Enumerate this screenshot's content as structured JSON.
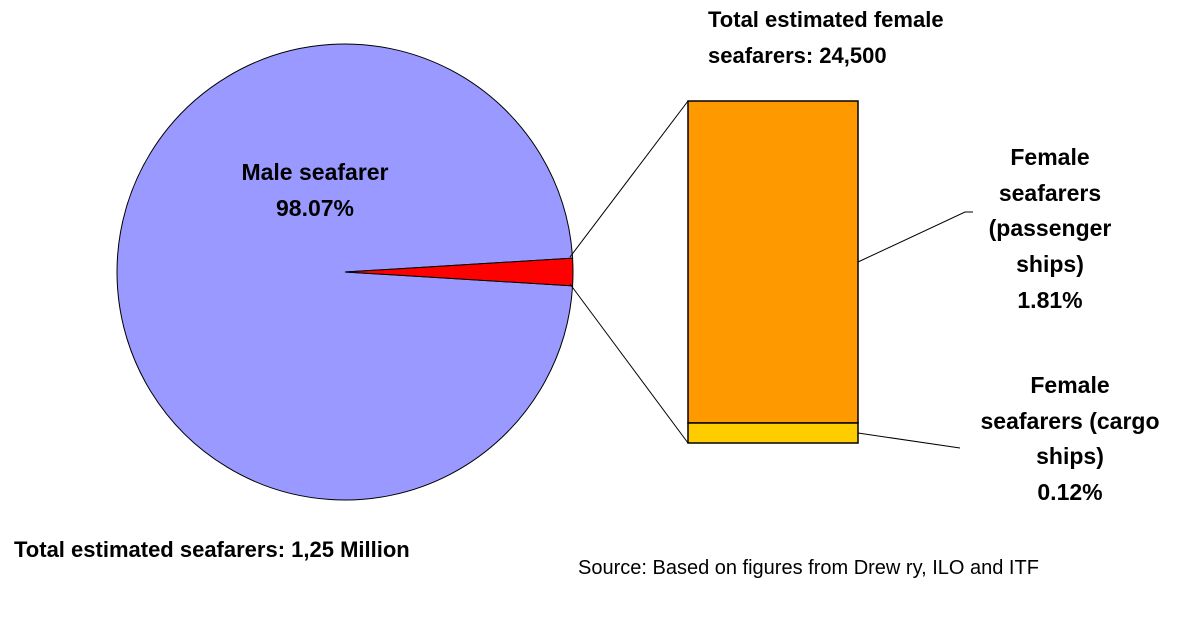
{
  "chart_data": {
    "type": "pie",
    "pie": {
      "slices": [
        {
          "label": "Male seafarer",
          "value_label": "98.07%",
          "value": 98.07,
          "color": "#9999ff"
        },
        {
          "label": "Female seafarers",
          "value": 1.93,
          "color": "#ff0000"
        }
      ]
    },
    "breakdown": {
      "type": "stacked-bar",
      "segments": [
        {
          "label": "Female seafarers (passenger ships)",
          "value_label": "1.81%",
          "value": 1.81,
          "color": "#ff9900"
        },
        {
          "label": "Female seafarers (cargo ships)",
          "value_label": "0.12%",
          "value": 0.12,
          "color": "#ffcc00"
        }
      ]
    },
    "annotations": {
      "female_total": "Total estimated  female seafarers: 24,500",
      "total": "Total estimated seafarers: 1,25 Million",
      "source": "Source: Based on figures from Drew ry, ILO and ITF"
    }
  },
  "labels": {
    "male_name": "Male seafarer",
    "male_pct": "98.07%",
    "female_total_line1": "Total estimated  female",
    "female_total_line2": "seafarers: 24,500",
    "passenger_line1": "Female",
    "passenger_line2": "seafarers",
    "passenger_line3": "(passenger",
    "passenger_line4": "ships)",
    "passenger_pct": "1.81%",
    "cargo_line1": "Female",
    "cargo_line2": "seafarers (cargo",
    "cargo_line3": "ships)",
    "cargo_pct": "0.12%",
    "total": "Total estimated seafarers: 1,25 Million",
    "source": "Source: Based on figures from Drew ry, ILO and ITF"
  }
}
